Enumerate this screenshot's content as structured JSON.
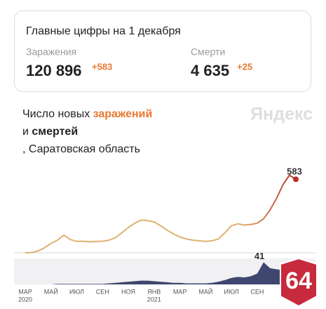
{
  "card": {
    "title": "Главные цифры на 1 декабря",
    "stats": [
      {
        "label": "Заражения",
        "value": "120 896",
        "delta": "+583"
      },
      {
        "label": "Смерти",
        "value": "4 635",
        "delta": "+25"
      }
    ]
  },
  "chart_header": {
    "line1": "Число новых ",
    "highlight": "заражений",
    "conjunction": "и ",
    "bold": "смертей",
    "region": ", Саратовская область",
    "logo": "Яндекс"
  },
  "badge": "64",
  "chart_data": [
    {
      "type": "line",
      "series": [
        {
          "name": "заражений",
          "color": "#e0b070",
          "end_color": "#b8322a",
          "values": [
            0,
            2,
            15,
            40,
            75,
            100,
            140,
            105,
            90,
            92,
            88,
            90,
            92,
            100,
            120,
            160,
            200,
            235,
            260,
            255,
            245,
            215,
            180,
            150,
            125,
            110,
            100,
            95,
            90,
            95,
            110,
            160,
            215,
            230,
            220,
            225,
            235,
            270,
            340,
            430,
            540,
            615,
            583
          ]
        }
      ],
      "ylim": [
        0,
        640
      ]
    },
    {
      "type": "area",
      "categories": [
        "МАР",
        null,
        null,
        null,
        "МАЙ",
        null,
        null,
        null,
        "ИЮЛ",
        null,
        null,
        null,
        "СЕН",
        null,
        null,
        null,
        "НОЯ",
        null,
        null,
        null,
        "ЯНВ",
        null,
        null,
        null,
        "МАР",
        null,
        null,
        null,
        "МАЙ",
        null,
        null,
        null,
        "ИЮЛ",
        null,
        null,
        null,
        "СЕН",
        null,
        null,
        null,
        null,
        null,
        null
      ],
      "x_sublabels": [
        "2020",
        null,
        null,
        null,
        null,
        null,
        null,
        null,
        null,
        null,
        null,
        null,
        null,
        null,
        null,
        null,
        null,
        null,
        null,
        null,
        "2021",
        null,
        null,
        null,
        null,
        null,
        null,
        null,
        null,
        null,
        null,
        null,
        null,
        null,
        null,
        null,
        null,
        null,
        null,
        null,
        null,
        null,
        null
      ],
      "series": [
        {
          "name": "смертей",
          "color": "#3f4770",
          "values": [
            0,
            0,
            0,
            0,
            0,
            1,
            1,
            1,
            1,
            1,
            1,
            1,
            1,
            2,
            3,
            4,
            5,
            6,
            7,
            7,
            6,
            5,
            4,
            3,
            3,
            2,
            2,
            2,
            2,
            3,
            5,
            8,
            12,
            14,
            13,
            15,
            20,
            41,
            30,
            28,
            26,
            25,
            25
          ]
        }
      ],
      "ylim": [
        0,
        48
      ]
    }
  ]
}
